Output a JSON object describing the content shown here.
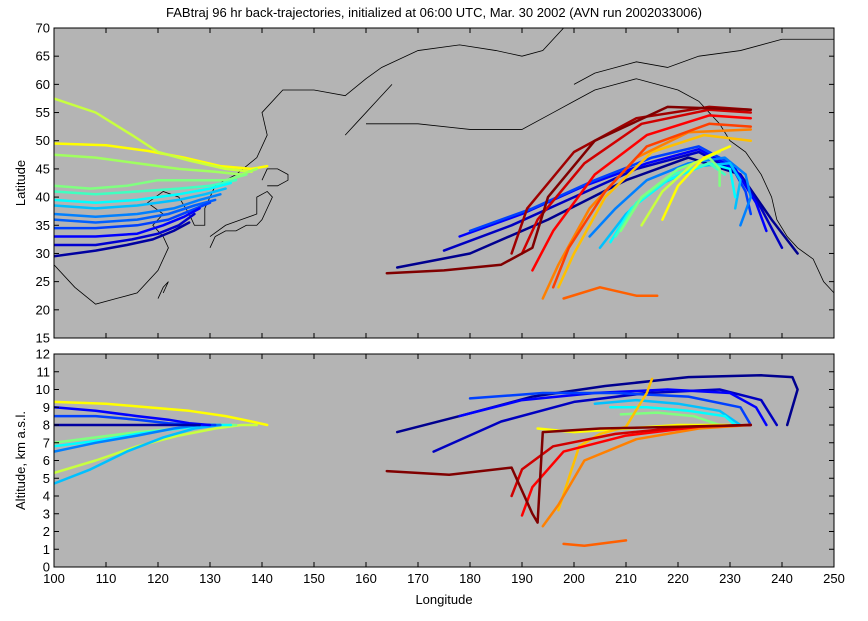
{
  "title": "FABtraj 96 hr back-trajectories, initialized at 06:00 UTC, Mar. 30 2002 (AVN run 2002033006)",
  "colors": {
    "panel_bg": "#b4b4b4",
    "coastline": "#000000",
    "trajectory_gradient": [
      "#00008f",
      "#0000ff",
      "#0080ff",
      "#00ffff",
      "#80ff80",
      "#ffff00",
      "#ff8000",
      "#ff0000",
      "#800000"
    ]
  },
  "chart_data": [
    {
      "type": "line",
      "panel": "map",
      "xlabel": "",
      "ylabel": "Latitude",
      "xlim": [
        100,
        250
      ],
      "ylim": [
        15,
        70
      ],
      "yticks": [
        15,
        20,
        25,
        30,
        35,
        40,
        45,
        50,
        55,
        60,
        65,
        70
      ],
      "grid": false,
      "series": [
        {
          "color": "#ffff00",
          "x": [
            100,
            110,
            118,
            125,
            132,
            138,
            141
          ],
          "y": [
            49.5,
            49.2,
            48.2,
            47,
            45.5,
            45,
            45.5
          ]
        },
        {
          "color": "#c8ff40",
          "x": [
            100,
            108,
            115,
            120,
            126,
            133,
            138
          ],
          "y": [
            57.5,
            55,
            51,
            48,
            46.5,
            45,
            44.5
          ]
        },
        {
          "color": "#a0ff60",
          "x": [
            100,
            108,
            116,
            124,
            131,
            136,
            139
          ],
          "y": [
            47.5,
            47,
            46,
            45,
            44.5,
            44,
            45
          ]
        },
        {
          "color": "#80ff80",
          "x": [
            100,
            107,
            114,
            120,
            127,
            133,
            137
          ],
          "y": [
            42,
            41.5,
            42,
            43,
            43,
            43,
            44
          ]
        },
        {
          "color": "#40ffc0",
          "x": [
            100,
            108,
            116,
            124,
            130,
            135
          ],
          "y": [
            41,
            40.5,
            41,
            41.5,
            42,
            43
          ]
        },
        {
          "color": "#00ffff",
          "x": [
            100,
            108,
            116,
            124,
            130,
            134
          ],
          "y": [
            39.5,
            39,
            39.5,
            40.5,
            41.5,
            42.5
          ]
        },
        {
          "color": "#00c0ff",
          "x": [
            100,
            108,
            116,
            124,
            129,
            133
          ],
          "y": [
            38.5,
            38,
            38.5,
            39.5,
            40.5,
            41.5
          ]
        },
        {
          "color": "#0080ff",
          "x": [
            100,
            108,
            116,
            123,
            128,
            132
          ],
          "y": [
            37,
            36.5,
            37,
            38,
            39.5,
            40.5
          ]
        },
        {
          "color": "#0060ff",
          "x": [
            100,
            108,
            116,
            122,
            127,
            131
          ],
          "y": [
            36,
            35.5,
            36,
            37,
            38.5,
            39.5
          ]
        },
        {
          "color": "#0040ff",
          "x": [
            100,
            108,
            116,
            122,
            126,
            130
          ],
          "y": [
            34.5,
            34.5,
            35,
            36,
            37.5,
            39
          ]
        },
        {
          "color": "#0000ff",
          "x": [
            100,
            108,
            116,
            121,
            125,
            128
          ],
          "y": [
            33,
            33,
            33.5,
            35,
            36.5,
            38
          ]
        },
        {
          "color": "#0000d0",
          "x": [
            100,
            108,
            115,
            120,
            124,
            127
          ],
          "y": [
            31.5,
            31.5,
            32.5,
            33.5,
            35,
            37
          ]
        },
        {
          "color": "#0000a0",
          "x": [
            100,
            108,
            114,
            119,
            123,
            126
          ],
          "y": [
            29.5,
            30.5,
            31.5,
            32.5,
            34,
            35.5
          ]
        },
        {
          "color": "#00008f",
          "x": [
            166,
            180,
            195,
            210,
            222,
            232,
            238,
            243
          ],
          "y": [
            27.5,
            30,
            36,
            43,
            47,
            44,
            36,
            30
          ]
        },
        {
          "color": "#0000c0",
          "x": [
            175,
            188,
            200,
            212,
            224,
            232,
            236,
            240
          ],
          "y": [
            30.5,
            35,
            40,
            45,
            48,
            44,
            38,
            31
          ]
        },
        {
          "color": "#0000ff",
          "x": [
            178,
            190,
            202,
            214,
            224,
            231,
            235,
            237
          ],
          "y": [
            33,
            37,
            42,
            46,
            48.5,
            45,
            39,
            34
          ]
        },
        {
          "color": "#0040ff",
          "x": [
            180,
            192,
            204,
            215,
            224,
            230,
            233,
            234
          ],
          "y": [
            34,
            38,
            43,
            47,
            49,
            46,
            41,
            37
          ]
        },
        {
          "color": "#0080ff",
          "x": [
            203,
            208,
            214,
            222,
            229,
            233,
            234,
            232
          ],
          "y": [
            33,
            38,
            43,
            46,
            47,
            44,
            40,
            35
          ]
        },
        {
          "color": "#00c0ff",
          "x": [
            205,
            210,
            216,
            224,
            230,
            232,
            231
          ],
          "y": [
            31,
            37,
            42,
            45.5,
            46,
            43,
            38
          ]
        },
        {
          "color": "#00ffff",
          "x": [
            207,
            211,
            218,
            226,
            230,
            231
          ],
          "y": [
            32,
            38,
            43,
            46,
            45,
            40
          ]
        },
        {
          "color": "#40ffc0",
          "x": [
            208,
            212,
            219,
            226,
            229
          ],
          "y": [
            33,
            39,
            44,
            46,
            44
          ]
        },
        {
          "color": "#80ff80",
          "x": [
            209,
            213,
            220,
            226,
            228,
            228
          ],
          "y": [
            34,
            40,
            45,
            47,
            45,
            42
          ]
        },
        {
          "color": "#c8ff40",
          "x": [
            213,
            217,
            223,
            228
          ],
          "y": [
            35,
            41,
            46,
            48
          ]
        },
        {
          "color": "#ffff00",
          "x": [
            217,
            220,
            225,
            230
          ],
          "y": [
            36,
            42,
            47,
            49
          ]
        },
        {
          "color": "#ffc000",
          "x": [
            197,
            200,
            206,
            215,
            225,
            234
          ],
          "y": [
            24,
            30,
            40,
            48,
            51,
            50
          ]
        },
        {
          "color": "#ff8000",
          "x": [
            194,
            197,
            203,
            212,
            222,
            234
          ],
          "y": [
            22,
            28,
            38,
            47,
            51.5,
            52
          ]
        },
        {
          "color": "#ff4000",
          "x": [
            196,
            199,
            206,
            214,
            226,
            234
          ],
          "y": [
            24,
            31,
            41,
            49,
            53,
            52.5
          ]
        },
        {
          "color": "#ff0000",
          "x": [
            192,
            196,
            204,
            214,
            226,
            234
          ],
          "y": [
            27,
            34,
            44,
            51,
            54.5,
            54
          ]
        },
        {
          "color": "#d00000",
          "x": [
            190,
            193,
            202,
            213,
            226,
            234
          ],
          "y": [
            30,
            36,
            46,
            53,
            55.5,
            55
          ]
        },
        {
          "color": "#a00000",
          "x": [
            188,
            191,
            200,
            212,
            226,
            234
          ],
          "y": [
            30,
            38,
            48,
            54,
            56,
            55.5
          ]
        },
        {
          "color": "#800000",
          "x": [
            164,
            175,
            186,
            192,
            195,
            204,
            218,
            234
          ],
          "y": [
            26.5,
            27,
            28,
            31,
            40,
            50,
            56,
            55.5
          ]
        },
        {
          "color": "#ff6000",
          "x": [
            198,
            205,
            212,
            216
          ],
          "y": [
            22,
            24,
            22.5,
            22.5
          ]
        }
      ]
    },
    {
      "type": "line",
      "panel": "altitude",
      "xlabel": "Longitude",
      "ylabel": "Altitude, km a.s.l.",
      "xlim": [
        100,
        250
      ],
      "ylim": [
        0,
        12
      ],
      "xticks": [
        100,
        110,
        120,
        130,
        140,
        150,
        160,
        170,
        180,
        190,
        200,
        210,
        220,
        230,
        240,
        250
      ],
      "yticks": [
        0,
        1,
        2,
        3,
        4,
        5,
        6,
        7,
        8,
        9,
        10,
        11,
        12
      ],
      "grid": false,
      "series": [
        {
          "color": "#ffff00",
          "x": [
            100,
            110,
            118,
            126,
            133,
            138,
            141
          ],
          "y": [
            9.3,
            9.2,
            9,
            8.8,
            8.5,
            8.2,
            8
          ]
        },
        {
          "color": "#c8ff40",
          "x": [
            100,
            108,
            116,
            124,
            131,
            136,
            139
          ],
          "y": [
            5.3,
            6,
            6.8,
            7.4,
            7.8,
            8,
            8
          ]
        },
        {
          "color": "#80ff80",
          "x": [
            100,
            108,
            116,
            124,
            130,
            135
          ],
          "y": [
            7,
            7.3,
            7.6,
            7.8,
            8,
            8
          ]
        },
        {
          "color": "#00ffff",
          "x": [
            100,
            108,
            116,
            124,
            130,
            134
          ],
          "y": [
            6.8,
            7.1,
            7.5,
            7.8,
            8,
            8
          ]
        },
        {
          "color": "#00c0ff",
          "x": [
            100,
            107,
            114,
            121,
            127,
            132
          ],
          "y": [
            4.7,
            5.5,
            6.5,
            7.3,
            7.8,
            8
          ]
        },
        {
          "color": "#0080ff",
          "x": [
            100,
            108,
            116,
            123,
            128,
            132
          ],
          "y": [
            6.5,
            7,
            7.4,
            7.8,
            8,
            8
          ]
        },
        {
          "color": "#0040ff",
          "x": [
            100,
            108,
            116,
            122,
            127,
            131
          ],
          "y": [
            8.5,
            8.5,
            8.3,
            8.1,
            8,
            8
          ]
        },
        {
          "color": "#0000ff",
          "x": [
            100,
            108,
            116,
            122,
            126,
            130
          ],
          "y": [
            9,
            8.8,
            8.5,
            8.3,
            8.1,
            8
          ]
        },
        {
          "color": "#0000a0",
          "x": [
            100,
            108,
            114,
            120,
            124,
            128
          ],
          "y": [
            8,
            8,
            8,
            8,
            8,
            8
          ]
        },
        {
          "color": "#00008f",
          "x": [
            166,
            178,
            192,
            206,
            222,
            236,
            242,
            243,
            241
          ],
          "y": [
            7.6,
            8.5,
            9.6,
            10.2,
            10.7,
            10.8,
            10.7,
            10,
            8
          ]
        },
        {
          "color": "#0000c0",
          "x": [
            173,
            186,
            200,
            214,
            228,
            236,
            239
          ],
          "y": [
            6.5,
            8.2,
            9.3,
            9.8,
            10,
            9.4,
            8
          ]
        },
        {
          "color": "#0000ff",
          "x": [
            178,
            190,
            204,
            218,
            230,
            235,
            237
          ],
          "y": [
            8.5,
            9.4,
            9.8,
            10,
            9.8,
            9,
            8
          ]
        },
        {
          "color": "#0040ff",
          "x": [
            180,
            194,
            208,
            222,
            232,
            234
          ],
          "y": [
            9.5,
            9.8,
            9.8,
            9.6,
            9,
            8
          ]
        },
        {
          "color": "#00c0ff",
          "x": [
            204,
            212,
            220,
            228,
            232
          ],
          "y": [
            9.2,
            9.4,
            9.2,
            8.8,
            8
          ]
        },
        {
          "color": "#00ffff",
          "x": [
            207,
            214,
            222,
            229,
            231
          ],
          "y": [
            9,
            9,
            8.8,
            8.5,
            8
          ]
        },
        {
          "color": "#80ff80",
          "x": [
            209,
            216,
            223,
            228
          ],
          "y": [
            8.6,
            8.7,
            8.5,
            8
          ]
        },
        {
          "color": "#ffff00",
          "x": [
            193,
            200,
            210,
            220,
            230
          ],
          "y": [
            7.8,
            7.6,
            7.8,
            8,
            8
          ]
        },
        {
          "color": "#ffc000",
          "x": [
            197,
            201,
            205,
            210,
            214,
            215
          ],
          "y": [
            3.2,
            6.8,
            7.5,
            7.9,
            9.8,
            10.6
          ]
        },
        {
          "color": "#ff8000",
          "x": [
            194,
            197,
            202,
            212,
            224,
            234
          ],
          "y": [
            2.3,
            3.5,
            6,
            7.2,
            7.8,
            8
          ]
        },
        {
          "color": "#ff6000",
          "x": [
            198,
            202,
            210
          ],
          "y": [
            1.3,
            1.2,
            1.5
          ]
        },
        {
          "color": "#ff0000",
          "x": [
            190,
            192,
            198,
            210,
            224,
            234
          ],
          "y": [
            2.9,
            4.5,
            6.5,
            7.4,
            7.9,
            8
          ]
        },
        {
          "color": "#d00000",
          "x": [
            188,
            190,
            196,
            208,
            222,
            234
          ],
          "y": [
            4,
            5.5,
            6.8,
            7.5,
            7.9,
            8
          ]
        },
        {
          "color": "#800000",
          "x": [
            164,
            176,
            188,
            192,
            193,
            194,
            205,
            220,
            234
          ],
          "y": [
            5.4,
            5.2,
            5.6,
            3,
            2.5,
            7.6,
            7.8,
            7.9,
            8
          ]
        }
      ]
    }
  ]
}
